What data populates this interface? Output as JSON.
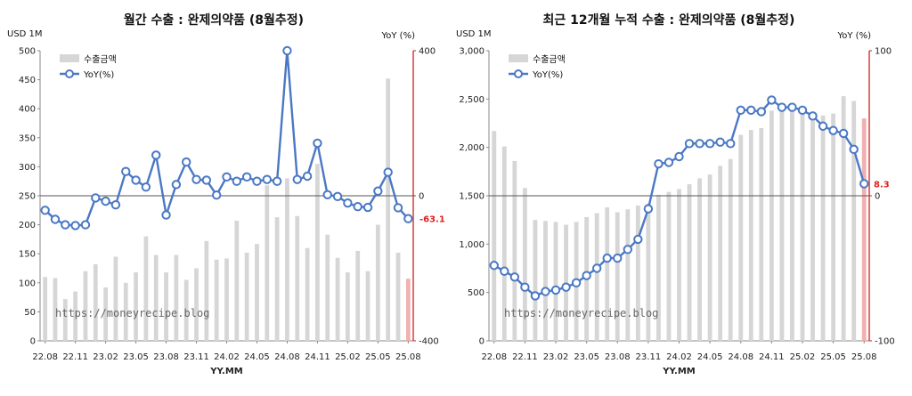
{
  "chart_data": [
    {
      "type": "bar",
      "title": "월간 수출 : 완제의약품 (8월추정)",
      "left_unit": "USD 1M",
      "right_unit": "YoY (%)",
      "xlabel": "YY.MM",
      "ylim": [
        0,
        500
      ],
      "y2lim": [
        -400,
        400
      ],
      "y_ticks": [
        "0",
        "50",
        "100",
        "150",
        "200",
        "250",
        "300",
        "350",
        "400",
        "450",
        "500"
      ],
      "y2_ticks": [
        "-400",
        "0",
        "400"
      ],
      "x_tick_labels": [
        "22.08",
        "22.11",
        "23.02",
        "23.05",
        "23.08",
        "23.11",
        "24.02",
        "24.05",
        "24.08",
        "24.11",
        "25.02",
        "25.05",
        "25.08"
      ],
      "watermark": "https://moneyrecipe.blog",
      "last_label": "-63.1",
      "legend": [
        "수출금액",
        "YoY(%)"
      ],
      "categories": [
        "22.08",
        "22.09",
        "22.10",
        "22.11",
        "22.12",
        "23.01",
        "23.02",
        "23.03",
        "23.04",
        "23.05",
        "23.06",
        "23.07",
        "23.08",
        "23.09",
        "23.10",
        "23.11",
        "23.12",
        "24.01",
        "24.02",
        "24.03",
        "24.04",
        "24.05",
        "24.06",
        "24.07",
        "24.08",
        "24.09",
        "24.10",
        "24.11",
        "24.12",
        "25.01",
        "25.02",
        "25.03",
        "25.04",
        "25.05",
        "25.06",
        "25.07",
        "25.08"
      ],
      "series": [
        {
          "name": "수출금액",
          "type": "bar",
          "values": [
            110,
            108,
            72,
            85,
            120,
            132,
            92,
            145,
            100,
            118,
            180,
            148,
            118,
            148,
            105,
            125,
            172,
            140,
            142,
            207,
            152,
            167,
            268,
            213,
            280,
            215,
            160,
            305,
            183,
            143,
            118,
            155,
            120,
            200,
            452,
            152,
            107
          ]
        },
        {
          "name": "YoY(%)",
          "type": "line",
          "axis": "right",
          "values": [
            -40,
            -65,
            -80,
            -82,
            -80,
            -6,
            -15,
            -25,
            67,
            43,
            24,
            112,
            -53,
            31,
            93,
            45,
            43,
            2,
            52,
            40,
            52,
            40,
            45,
            40,
            400,
            45,
            54,
            145,
            3,
            -2,
            -20,
            -30,
            -32,
            13,
            65,
            -33,
            -63.1
          ]
        }
      ]
    },
    {
      "type": "bar",
      "title": "최근 12개월 누적 수출 : 완제의약품 (8월추정)",
      "left_unit": "USD 1M",
      "right_unit": "YoY (%)",
      "xlabel": "YY.MM",
      "ylim": [
        0,
        3000
      ],
      "y2lim": [
        -100,
        100
      ],
      "y_ticks": [
        "0",
        "500",
        "1,000",
        "1,500",
        "2,000",
        "2,500",
        "3,000"
      ],
      "y2_ticks": [
        "-100",
        "0",
        "100"
      ],
      "x_tick_labels": [
        "22.08",
        "22.11",
        "23.02",
        "23.05",
        "23.08",
        "23.11",
        "24.02",
        "24.05",
        "24.08",
        "24.11",
        "25.02",
        "25.05",
        "25.08"
      ],
      "watermark": "https://moneyrecipe.blog",
      "last_label": "8.3",
      "legend": [
        "수출금액",
        "YoY(%)"
      ],
      "categories": [
        "22.08",
        "22.09",
        "22.10",
        "22.11",
        "22.12",
        "23.01",
        "23.02",
        "23.03",
        "23.04",
        "23.05",
        "23.06",
        "23.07",
        "23.08",
        "23.09",
        "23.10",
        "23.11",
        "23.12",
        "24.01",
        "24.02",
        "24.03",
        "24.04",
        "24.05",
        "24.06",
        "24.07",
        "24.08",
        "24.09",
        "24.10",
        "24.11",
        "24.12",
        "25.01",
        "25.02",
        "25.03",
        "25.04",
        "25.05",
        "25.06",
        "25.07",
        "25.08"
      ],
      "series": [
        {
          "name": "수출금액",
          "type": "bar",
          "values": [
            2170,
            2010,
            1860,
            1580,
            1250,
            1240,
            1230,
            1200,
            1230,
            1280,
            1320,
            1380,
            1330,
            1360,
            1400,
            1420,
            1510,
            1540,
            1570,
            1620,
            1680,
            1720,
            1810,
            1880,
            2130,
            2180,
            2200,
            2380,
            2440,
            2420,
            2400,
            2360,
            2330,
            2350,
            2530,
            2480,
            2300
          ]
        },
        {
          "name": "YoY(%)",
          "type": "line",
          "axis": "right",
          "values": [
            -48,
            -52,
            -56,
            -63,
            -69,
            -66,
            -65,
            -63,
            -60,
            -55,
            -50,
            -43,
            -43,
            -37,
            -30,
            -9,
            22,
            23,
            27,
            36,
            36,
            36,
            37,
            36,
            59,
            59,
            58,
            66,
            61,
            61,
            59,
            55,
            48,
            45,
            43,
            32,
            8.3
          ]
        }
      ]
    }
  ]
}
